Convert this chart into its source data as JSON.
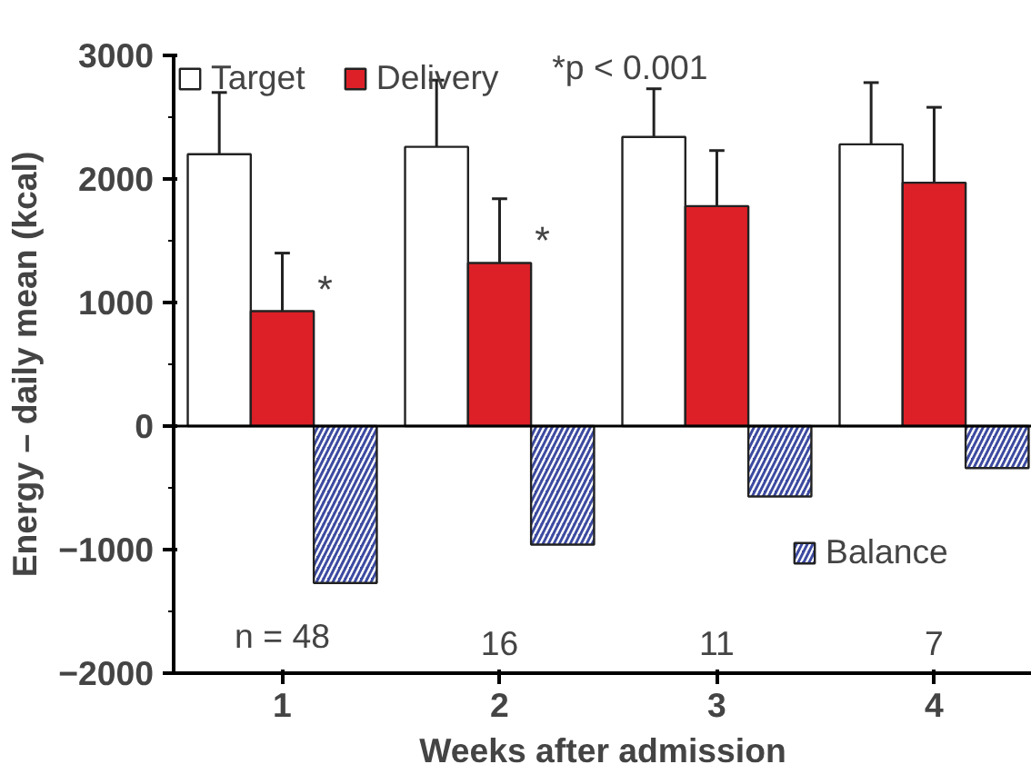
{
  "chart_data": {
    "type": "bar",
    "xlabel": "Weeks after admission",
    "ylabel": "Energy – daily mean (kcal)",
    "categories": [
      "1",
      "2",
      "3",
      "4"
    ],
    "series": [
      {
        "name": "Target",
        "color": "#ffffff",
        "values": [
          2200,
          2260,
          2340,
          2280
        ],
        "errors": [
          [
            2200,
            2700
          ],
          [
            2260,
            2800
          ],
          [
            2340,
            2730
          ],
          [
            2280,
            2780
          ]
        ]
      },
      {
        "name": "Delivery",
        "color": "#dd2027",
        "values": [
          930,
          1320,
          1780,
          1970
        ],
        "errors": [
          [
            930,
            1400
          ],
          [
            1320,
            1840
          ],
          [
            1780,
            2230
          ],
          [
            1970,
            2580
          ]
        ],
        "value_labels": [
          "*",
          "*",
          null,
          null
        ]
      },
      {
        "name": "Balance",
        "color": "#3c4aa0",
        "values": [
          -1270,
          -960,
          -570,
          -340
        ]
      }
    ],
    "ylim": [
      -2000,
      3000
    ],
    "yticks": [
      -2000,
      -1000,
      0,
      1000,
      2000,
      3000
    ],
    "ref_lines": [
      {
        "axis": "y",
        "value": 0,
        "color": "#000000"
      }
    ],
    "annotations": [
      "*p < 0.001",
      "n = 48",
      "16",
      "11",
      "7"
    ],
    "legend": "top left",
    "grid": false
  }
}
